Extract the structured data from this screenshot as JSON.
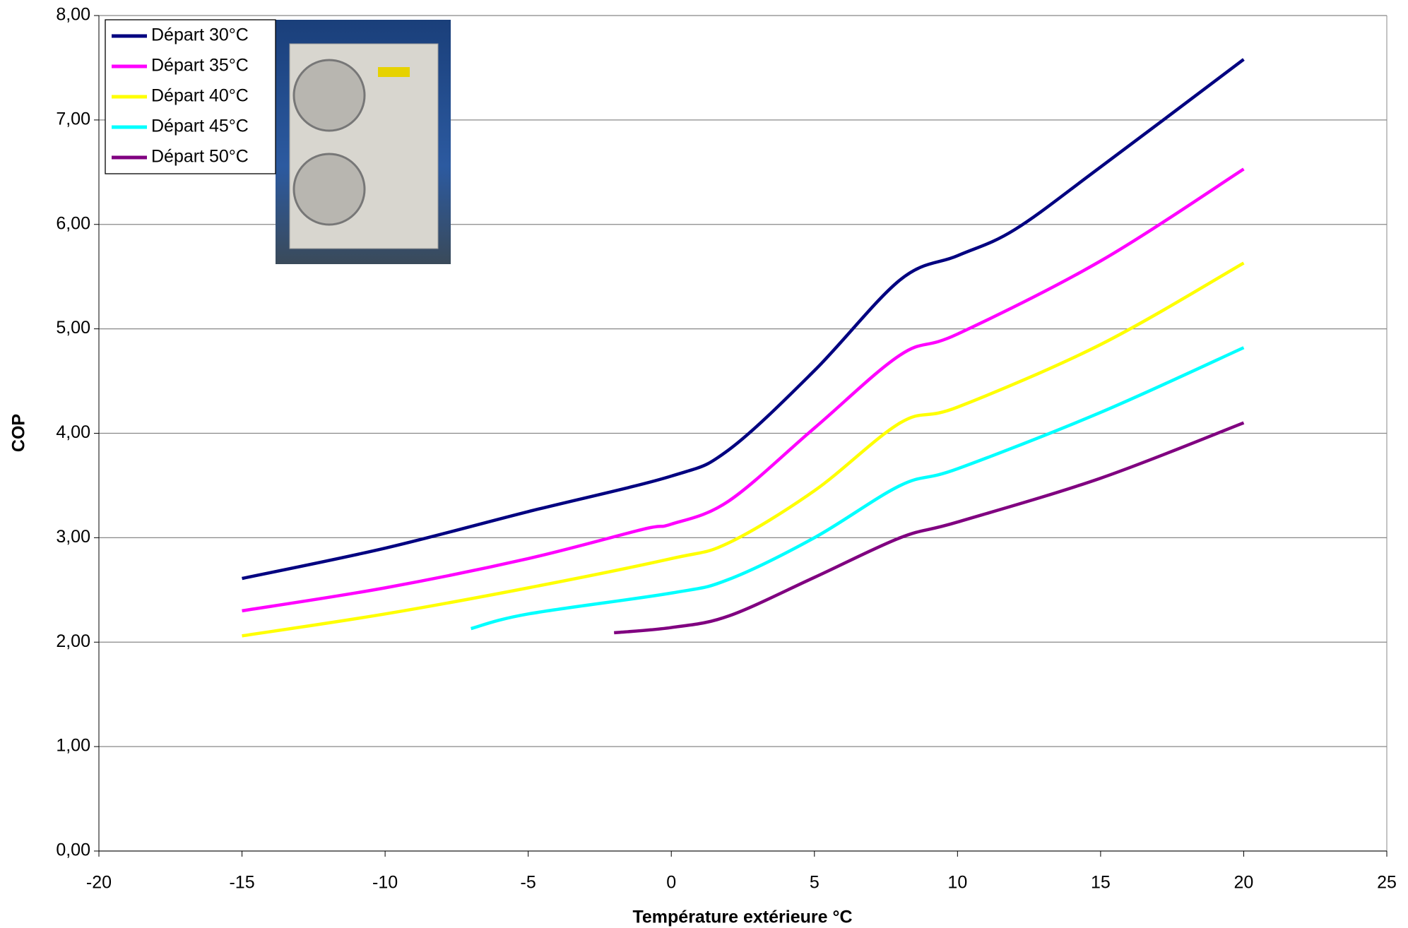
{
  "chart_data": {
    "type": "line",
    "xlabel": "Température extérieure °C",
    "ylabel": "COP",
    "xlim": [
      -20,
      25
    ],
    "xticks": [
      -20,
      -15,
      -10,
      -5,
      0,
      5,
      10,
      15,
      20,
      25
    ],
    "ylim": [
      0,
      8
    ],
    "yticks": [
      {
        "value": 0,
        "label": "0,00"
      },
      {
        "value": 1,
        "label": "1,00"
      },
      {
        "value": 2,
        "label": "2,00"
      },
      {
        "value": 3,
        "label": "3,00"
      },
      {
        "value": 4,
        "label": "4,00"
      },
      {
        "value": 5,
        "label": "5,00"
      },
      {
        "value": 6,
        "label": "6,00"
      },
      {
        "value": 7,
        "label": "7,00"
      },
      {
        "value": 8,
        "label": "8,00"
      }
    ],
    "grid": true,
    "legend": "upper left",
    "series": [
      {
        "name": "Départ 30°C",
        "color": "#000080",
        "x": [
          -15,
          -10,
          -5,
          0,
          2,
          5,
          8,
          10,
          12,
          15,
          20
        ],
        "values": [
          2.61,
          2.9,
          3.25,
          3.59,
          3.84,
          4.6,
          5.47,
          5.7,
          5.95,
          6.55,
          7.58
        ]
      },
      {
        "name": "Départ 35°C",
        "color": "#ff00ff",
        "x": [
          -15,
          -10,
          -5,
          -1,
          0,
          2,
          5,
          8,
          10,
          15,
          20
        ],
        "values": [
          2.3,
          2.52,
          2.8,
          3.08,
          3.13,
          3.35,
          4.05,
          4.75,
          4.95,
          5.65,
          6.53
        ]
      },
      {
        "name": "Départ 40°C",
        "color": "#ffff00",
        "x": [
          -15,
          -10,
          -5,
          0,
          2,
          5,
          8,
          10,
          15,
          20
        ],
        "values": [
          2.06,
          2.27,
          2.52,
          2.8,
          2.95,
          3.45,
          4.1,
          4.25,
          4.85,
          5.63
        ]
      },
      {
        "name": "Départ 45°C",
        "color": "#00ffff",
        "x": [
          -7,
          -5,
          0,
          2,
          5,
          8,
          10,
          15,
          20
        ],
        "values": [
          2.13,
          2.27,
          2.47,
          2.6,
          3.0,
          3.5,
          3.66,
          4.2,
          4.82
        ]
      },
      {
        "name": "Départ 50°C",
        "color": "#800080",
        "x": [
          -2,
          0,
          2,
          5,
          8,
          10,
          15,
          20
        ],
        "values": [
          2.09,
          2.14,
          2.25,
          2.62,
          3.0,
          3.15,
          3.57,
          4.1
        ]
      }
    ]
  }
}
